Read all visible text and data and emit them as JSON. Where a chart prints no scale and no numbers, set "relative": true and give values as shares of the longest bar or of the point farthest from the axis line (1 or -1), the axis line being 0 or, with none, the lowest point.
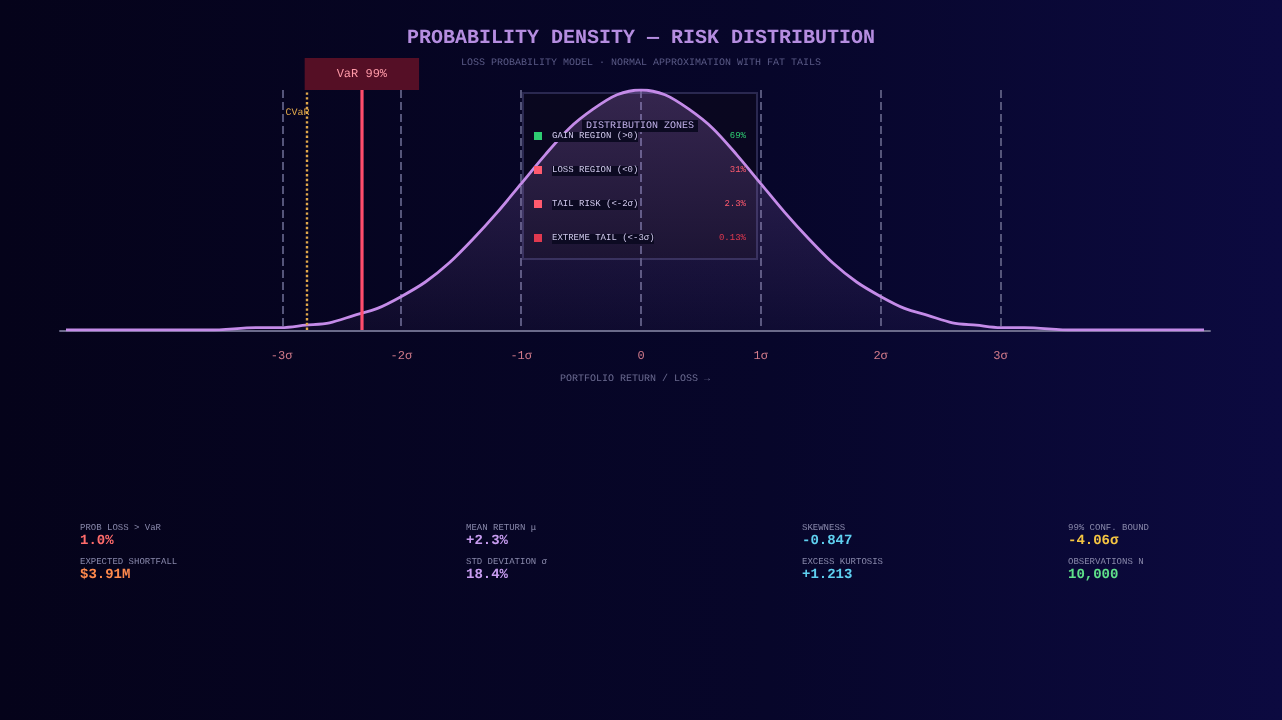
{
  "chart_data": {
    "type": "area",
    "title": "PROBABILITY DENSITY — RISK DISTRIBUTION",
    "subtitle": "LOSS PROBABILITY MODEL · NORMAL APPROXIMATION WITH FAT TAILS",
    "xlabel": "PORTFOLIO RETURN / LOSS →",
    "relative": true,
    "x": [
      -4.8,
      -4.4,
      -4.0,
      -3.6,
      -3.2,
      -3.0,
      -2.8,
      -2.6,
      -2.4,
      -2.2,
      -2.0,
      -1.8,
      -1.6,
      -1.4,
      -1.2,
      -1.0,
      -0.8,
      -0.6,
      -0.4,
      -0.2,
      0.0,
      0.2,
      0.4,
      0.6,
      0.8,
      1.0,
      1.2,
      1.4,
      1.6,
      1.8,
      2.0,
      2.2,
      2.4,
      2.6,
      2.8,
      3.0,
      3.2,
      3.6,
      4.0,
      4.4,
      4.7
    ],
    "series": [
      {
        "color": "#c48be8",
        "values": [
          0.0,
          0.0,
          0.0,
          0.0,
          0.01,
          0.01,
          0.02,
          0.03,
          0.06,
          0.09,
          0.14,
          0.2,
          0.28,
          0.38,
          0.49,
          0.61,
          0.73,
          0.84,
          0.92,
          0.98,
          1.0,
          0.98,
          0.92,
          0.84,
          0.73,
          0.61,
          0.49,
          0.38,
          0.28,
          0.2,
          0.14,
          0.09,
          0.06,
          0.03,
          0.02,
          0.01,
          0.01,
          0.0,
          0.0,
          0.0,
          0.0
        ]
      }
    ],
    "xlim": [
      -4.85,
      4.75
    ],
    "xticks": [
      {
        "value": -3,
        "label": "-3σ"
      },
      {
        "value": -2,
        "label": "-2σ"
      },
      {
        "value": -1,
        "label": "-1σ"
      },
      {
        "value": 0,
        "label": "0"
      },
      {
        "value": 1,
        "label": "1σ"
      },
      {
        "value": 2,
        "label": "2σ"
      },
      {
        "value": 3,
        "label": "3σ"
      }
    ],
    "grid": "x",
    "ref_lines": [
      {
        "axis": "x",
        "value": -2.33,
        "label": "VaR 99%",
        "color": "#ff4d6d",
        "line_style": "solid"
      },
      {
        "axis": "x",
        "value": -2.8,
        "label": "CVaR",
        "color": "#e0a84a",
        "line_style": "dotted"
      }
    ],
    "annotations": [
      "DISTRIBUTION ZONES",
      "GAIN REGION (>0)",
      "LOSS REGION (<0)",
      "TAIL RISK (<-2σ)",
      "EXTREME TAIL (<-3σ)",
      "69%",
      "31%",
      "2.3%",
      "0.13%",
      "PROB LOSS > VaR",
      "1.0%",
      "MEAN RETURN μ",
      "+2.3%",
      "SKEWNESS",
      "-0.847",
      "99% CONF. BOUND",
      "-4.06σ",
      "EXPECTED SHORTFALL",
      "$3.91M",
      "STD DEVIATION σ",
      "18.4%",
      "EXCESS KURTOSIS",
      "+1.213",
      "OBSERVATIONS N",
      "10,000"
    ]
  }
}
